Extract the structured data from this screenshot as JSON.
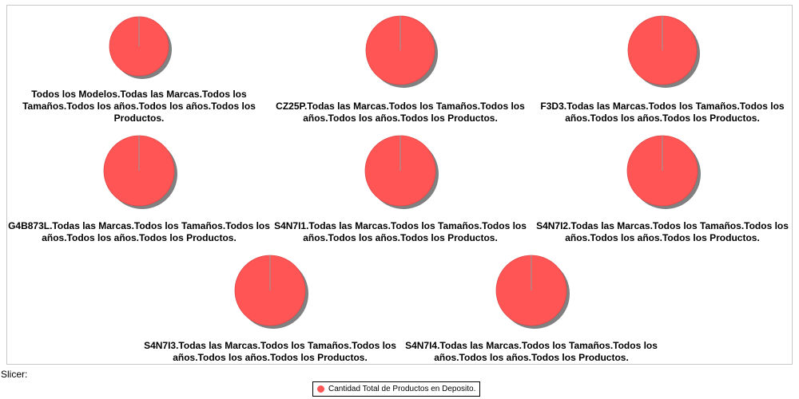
{
  "slicer_label": "Slicer:",
  "colors": {
    "slice": "#ff5555",
    "slice_edge": "#e04848",
    "shadow": "#808080",
    "divider": "#999999"
  },
  "chart_data": {
    "type": "pie",
    "legend": {
      "placement": "bottom",
      "entries": [
        "Cantidad Total de Productos en Deposito."
      ]
    },
    "pies": [
      {
        "label": "Todos los Modelos.Todas las Marcas.Todos los Tamaños.Todos los años.Todos los años.Todos los Productos.",
        "values": [
          100
        ]
      },
      {
        "label": "CZ25P.Todas las Marcas.Todos los Tamaños.Todos los años.Todos los años.Todos los Productos.",
        "values": [
          100
        ]
      },
      {
        "label": "F3D3.Todas las Marcas.Todos los Tamaños.Todos los años.Todos los años.Todos los Productos.",
        "values": [
          100
        ]
      },
      {
        "label": "G4B873L.Todas las Marcas.Todos los Tamaños.Todos los años.Todos los años.Todos los Productos.",
        "values": [
          100
        ]
      },
      {
        "label": "S4N7I1.Todas las Marcas.Todos los Tamaños.Todos los años.Todos los años.Todos los Productos.",
        "values": [
          100
        ]
      },
      {
        "label": "S4N7I2.Todas las Marcas.Todos los Tamaños.Todos los años.Todos los años.Todos los Productos.",
        "values": [
          100
        ]
      },
      {
        "label": "S4N7I3.Todas las Marcas.Todos los Tamaños.Todos los años.Todos los años.Todos los Productos.",
        "values": [
          100
        ]
      },
      {
        "label": "S4N7I4.Todas las Marcas.Todos los Tamaños.Todos los años.Todos los años.Todos los Productos.",
        "values": [
          100
        ]
      }
    ]
  }
}
